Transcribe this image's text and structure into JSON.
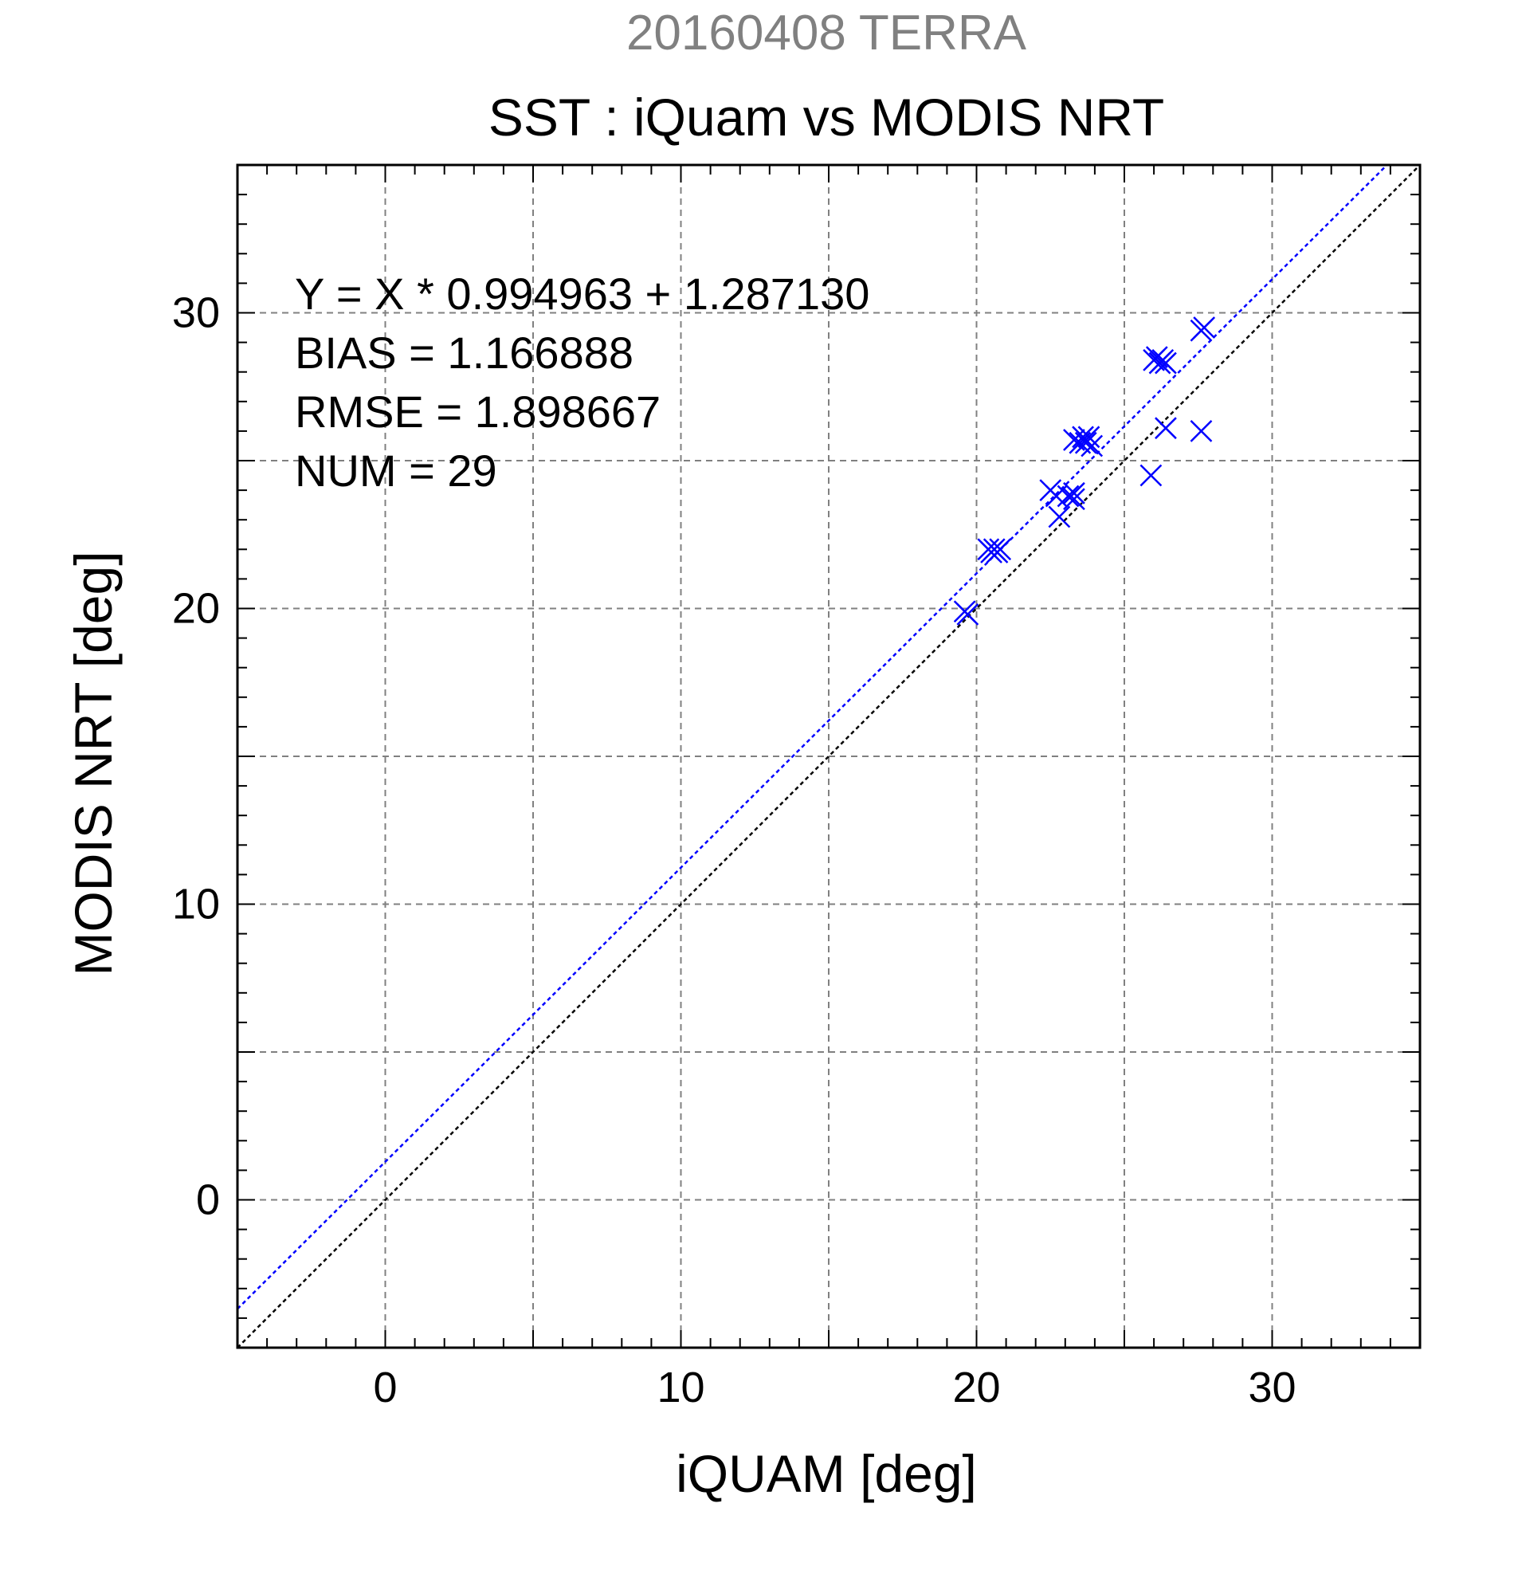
{
  "chart_data": {
    "type": "scatter",
    "supertitle": "20160408 TERRA",
    "title": "SST : iQuam vs MODIS NRT",
    "xlabel": "iQUAM [deg]",
    "ylabel": "MODIS NRT [deg]",
    "xlim": [
      -5,
      35
    ],
    "ylim": [
      -5,
      35
    ],
    "xticks": [
      0,
      10,
      20,
      30
    ],
    "yticks": [
      0,
      10,
      20,
      30
    ],
    "grid": true,
    "stats": [
      "Y = X * 0.994963 + 1.287130",
      "BIAS = 1.166888",
      "RMSE = 1.898667",
      "NUM = 29"
    ],
    "fit": {
      "slope": 0.994963,
      "intercept": 1.28713,
      "color": "#0000ff"
    },
    "identity_line_color": "#000000",
    "marker_color": "#0000ff",
    "points": [
      [
        19.6,
        19.9
      ],
      [
        19.7,
        19.8
      ],
      [
        20.4,
        22.0
      ],
      [
        20.5,
        21.9
      ],
      [
        20.6,
        22.0
      ],
      [
        20.7,
        21.9
      ],
      [
        20.8,
        22.0
      ],
      [
        22.5,
        24.0
      ],
      [
        22.7,
        23.8
      ],
      [
        22.8,
        23.1
      ],
      [
        23.1,
        23.8
      ],
      [
        23.3,
        23.9
      ],
      [
        23.3,
        23.7
      ],
      [
        23.3,
        25.7
      ],
      [
        23.5,
        25.6
      ],
      [
        23.6,
        25.8
      ],
      [
        23.7,
        25.6
      ],
      [
        23.8,
        25.8
      ],
      [
        23.9,
        25.5
      ],
      [
        25.9,
        24.5
      ],
      [
        26.0,
        28.4
      ],
      [
        26.1,
        28.5
      ],
      [
        26.2,
        28.3
      ],
      [
        26.3,
        28.4
      ],
      [
        26.4,
        28.3
      ],
      [
        26.4,
        26.1
      ],
      [
        27.6,
        29.4
      ],
      [
        27.7,
        29.5
      ],
      [
        27.6,
        26.0
      ]
    ]
  }
}
